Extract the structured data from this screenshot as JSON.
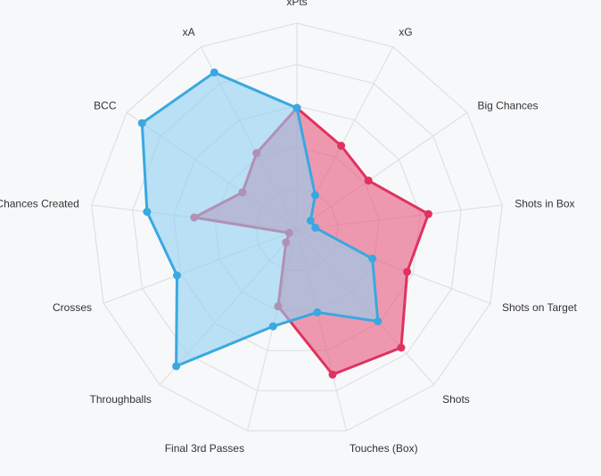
{
  "chart_data": {
    "type": "radar",
    "axes": [
      "xPts",
      "xG",
      "Big Chances",
      "Shots in Box",
      "Shots on Target",
      "Shots",
      "Touches (Box)",
      "Final 3rd Passes",
      "Throughballs",
      "Crosses",
      "Chances Created",
      "BCC",
      "xA"
    ],
    "range": [
      0,
      100
    ],
    "rings": 5,
    "grid": true,
    "legend": "none",
    "series": [
      {
        "color": "#e0325f",
        "fill": "#e8587d",
        "values": [
          59,
          46,
          42,
          64,
          57,
          76,
          72,
          38,
          8,
          4,
          50,
          32,
          42
        ]
      },
      {
        "color": "#3aa8e0",
        "fill": "#8fd0f0",
        "values": [
          59,
          19,
          8,
          9,
          39,
          59,
          41,
          48,
          88,
          62,
          73,
          91,
          86
        ]
      }
    ]
  }
}
